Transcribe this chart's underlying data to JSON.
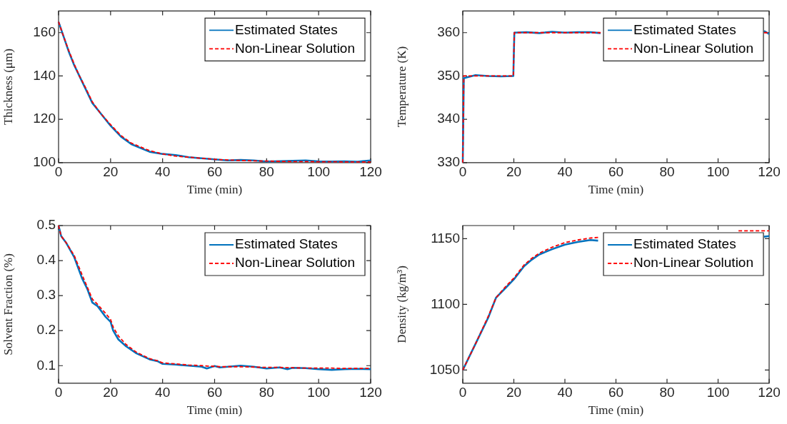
{
  "chart_data": [
    {
      "type": "line",
      "xlabel": "Time (min)",
      "ylabel": "Thickness (μm)",
      "xlim": [
        0,
        120
      ],
      "xticks": [
        0,
        20,
        40,
        60,
        80,
        100,
        120
      ],
      "ylim": [
        100,
        170
      ],
      "yticks": [
        100,
        120,
        140,
        160
      ],
      "grid": false,
      "legend": "top right",
      "x": [
        0,
        2,
        4,
        6,
        8,
        10,
        13,
        16,
        20,
        24,
        28,
        32,
        35,
        40,
        45,
        50,
        55,
        60,
        65,
        70,
        75,
        80,
        85,
        90,
        95,
        100,
        105,
        110,
        115,
        120
      ],
      "series": [
        {
          "name": "Estimated States",
          "color": "#0072bd",
          "line_style": "solid",
          "values": [
            165,
            158,
            151,
            145,
            140,
            135,
            127.5,
            123,
            117,
            112,
            108.5,
            106.5,
            105,
            104,
            103.5,
            102.5,
            102,
            101.5,
            101,
            101.2,
            101,
            100.5,
            100.7,
            100.8,
            101,
            100.6,
            100.5,
            100.6,
            100.4,
            101
          ]
        },
        {
          "name": "Non-Linear Solution",
          "color": "#ff0000",
          "line_style": "dashed",
          "values": [
            165,
            158,
            151.5,
            145.5,
            140,
            135.5,
            128,
            123,
            117.5,
            112.5,
            109,
            107,
            105.5,
            104,
            103,
            102.5,
            102,
            101.5,
            101.2,
            101,
            100.8,
            100.7,
            100.6,
            100.5,
            100.5,
            100.4,
            100.4,
            100.3,
            100.3,
            100.3
          ]
        }
      ]
    },
    {
      "type": "line",
      "xlabel": "Time (min)",
      "ylabel": "Temperature (K)",
      "xlim": [
        0,
        120
      ],
      "xticks": [
        0,
        20,
        40,
        60,
        80,
        100,
        120
      ],
      "ylim": [
        330,
        365
      ],
      "yticks": [
        330,
        340,
        350,
        360
      ],
      "grid": false,
      "legend": "top right",
      "x": [
        0,
        0.4,
        5,
        10,
        15,
        19.8,
        20.2,
        25,
        30,
        35,
        40,
        45,
        50,
        54,
        60,
        118,
        120
      ],
      "series": [
        {
          "name": "Estimated States",
          "color": "#0072bd",
          "line_style": "solid",
          "values": [
            330,
            349.5,
            350.2,
            350,
            349.9,
            350,
            360,
            360.1,
            359.9,
            360.2,
            360,
            360.1,
            360.1,
            359.9,
            null,
            360.4,
            359.7
          ]
        },
        {
          "name": "Non-Linear Solution",
          "color": "#ff0000",
          "line_style": "dashed",
          "values": [
            330,
            350,
            350,
            350,
            350,
            350,
            360,
            360,
            360,
            360,
            360,
            360,
            360,
            360,
            null,
            360,
            360
          ]
        }
      ]
    },
    {
      "type": "line",
      "xlabel": "Time (min)",
      "ylabel": "Solvent Fraction (%)",
      "xlim": [
        0,
        120
      ],
      "xticks": [
        0,
        20,
        40,
        60,
        80,
        100,
        120
      ],
      "ylim": [
        0.05,
        0.5
      ],
      "yticks": [
        0.1,
        0.2,
        0.3,
        0.4,
        0.5
      ],
      "grid": false,
      "legend": "top right",
      "x": [
        0,
        1,
        3,
        6,
        9,
        11,
        13,
        15,
        18,
        20,
        21,
        23,
        26,
        30,
        35,
        38,
        40,
        45,
        50,
        55,
        57,
        60,
        62,
        70,
        75,
        80,
        85,
        88,
        90,
        95,
        100,
        105,
        110,
        115,
        120
      ],
      "series": [
        {
          "name": "Estimated States",
          "color": "#0072bd",
          "line_style": "solid",
          "values": [
            0.5,
            0.47,
            0.45,
            0.41,
            0.35,
            0.32,
            0.28,
            0.27,
            0.24,
            0.225,
            0.2,
            0.175,
            0.155,
            0.135,
            0.118,
            0.113,
            0.105,
            0.103,
            0.1,
            0.097,
            0.092,
            0.099,
            0.095,
            0.1,
            0.097,
            0.092,
            0.095,
            0.09,
            0.094,
            0.093,
            0.09,
            0.088,
            0.09,
            0.091,
            0.09
          ]
        },
        {
          "name": "Non-Linear Solution",
          "color": "#ff0000",
          "line_style": "dashed",
          "values": [
            0.5,
            0.47,
            0.45,
            0.415,
            0.36,
            0.325,
            0.29,
            0.275,
            0.25,
            0.232,
            0.21,
            0.185,
            0.16,
            0.138,
            0.12,
            0.114,
            0.108,
            0.105,
            0.102,
            0.1,
            0.099,
            0.098,
            0.097,
            0.097,
            0.096,
            0.095,
            0.095,
            0.094,
            0.094,
            0.093,
            0.093,
            0.093,
            0.092,
            0.092,
            0.092
          ]
        }
      ]
    },
    {
      "type": "line",
      "xlabel": "Time (min)",
      "ylabel": "Density (kg/m³)",
      "xlim": [
        0,
        120
      ],
      "xticks": [
        0,
        20,
        40,
        60,
        80,
        100,
        120
      ],
      "ylim": [
        1040,
        1160
      ],
      "yticks": [
        1050,
        1100,
        1150
      ],
      "grid": false,
      "legend": "top right",
      "x": [
        0,
        5,
        10,
        13,
        17,
        20,
        24,
        27,
        30,
        35,
        40,
        45,
        50,
        53,
        60,
        108,
        118,
        120
      ],
      "series": [
        {
          "name": "Estimated States",
          "color": "#0072bd",
          "line_style": "solid",
          "values": [
            1050,
            1070,
            1090,
            1105,
            1113,
            1119,
            1129,
            1134,
            1138,
            1142,
            1145.5,
            1147.5,
            1149,
            1148.5,
            null,
            null,
            1151.5,
            1152
          ]
        },
        {
          "name": "Non-Linear Solution",
          "color": "#ff0000",
          "line_style": "dashed",
          "values": [
            1050,
            1070,
            1091,
            1105,
            1114,
            1120,
            1130,
            1135,
            1139,
            1143.5,
            1147,
            1149,
            1150.5,
            1151,
            null,
            1156,
            1156,
            1156
          ]
        }
      ]
    }
  ]
}
